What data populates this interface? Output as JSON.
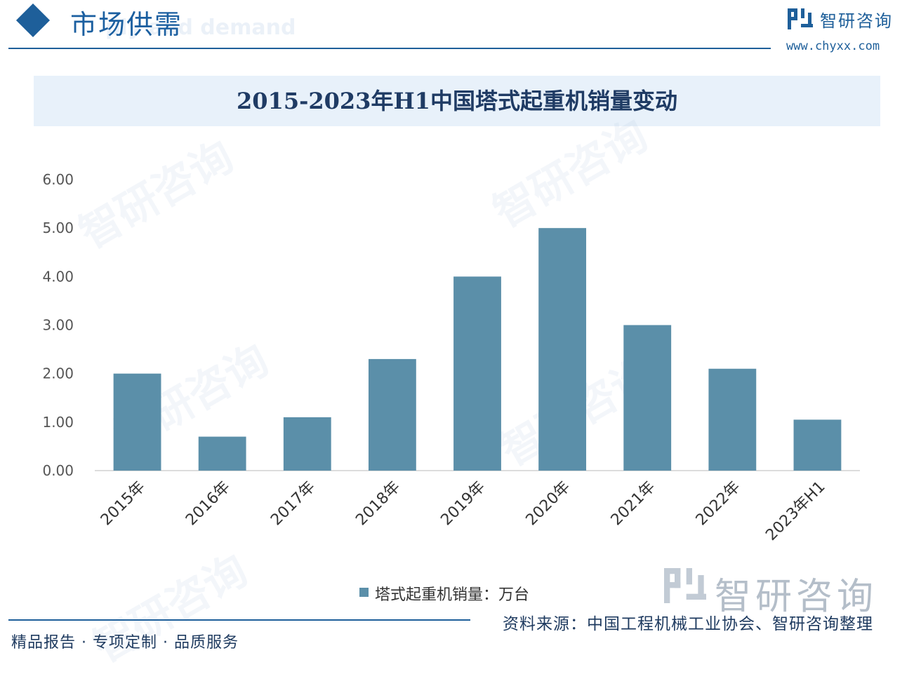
{
  "header": {
    "section_title": "市场供需",
    "section_subtitle": "ply and demand",
    "brand_name": "智研咨询",
    "brand_url": "www.chyxx.com"
  },
  "watermark_text": "智研咨询",
  "chart_data": {
    "type": "bar",
    "title": "2015-2023年H1中国塔式起重机销量变动",
    "categories": [
      "2015年",
      "2016年",
      "2017年",
      "2018年",
      "2019年",
      "2020年",
      "2021年",
      "2022年",
      "2023年H1"
    ],
    "series": [
      {
        "name": "塔式起重机销量：万台",
        "values": [
          2.0,
          0.7,
          1.1,
          2.3,
          4.0,
          5.0,
          3.0,
          2.1,
          1.05
        ],
        "color": "#5b8fa9"
      }
    ],
    "y_ticks": [
      "0.00",
      "1.00",
      "2.00",
      "3.00",
      "4.00",
      "5.00",
      "6.00"
    ],
    "ylim": [
      0,
      6
    ],
    "grid": false,
    "legend_position": "bottom"
  },
  "footer": {
    "left_text": "精品报告 · 专项定制 · 品质服务",
    "source_text": "资料来源：中国工程机械工业协会、智研咨询整理"
  }
}
